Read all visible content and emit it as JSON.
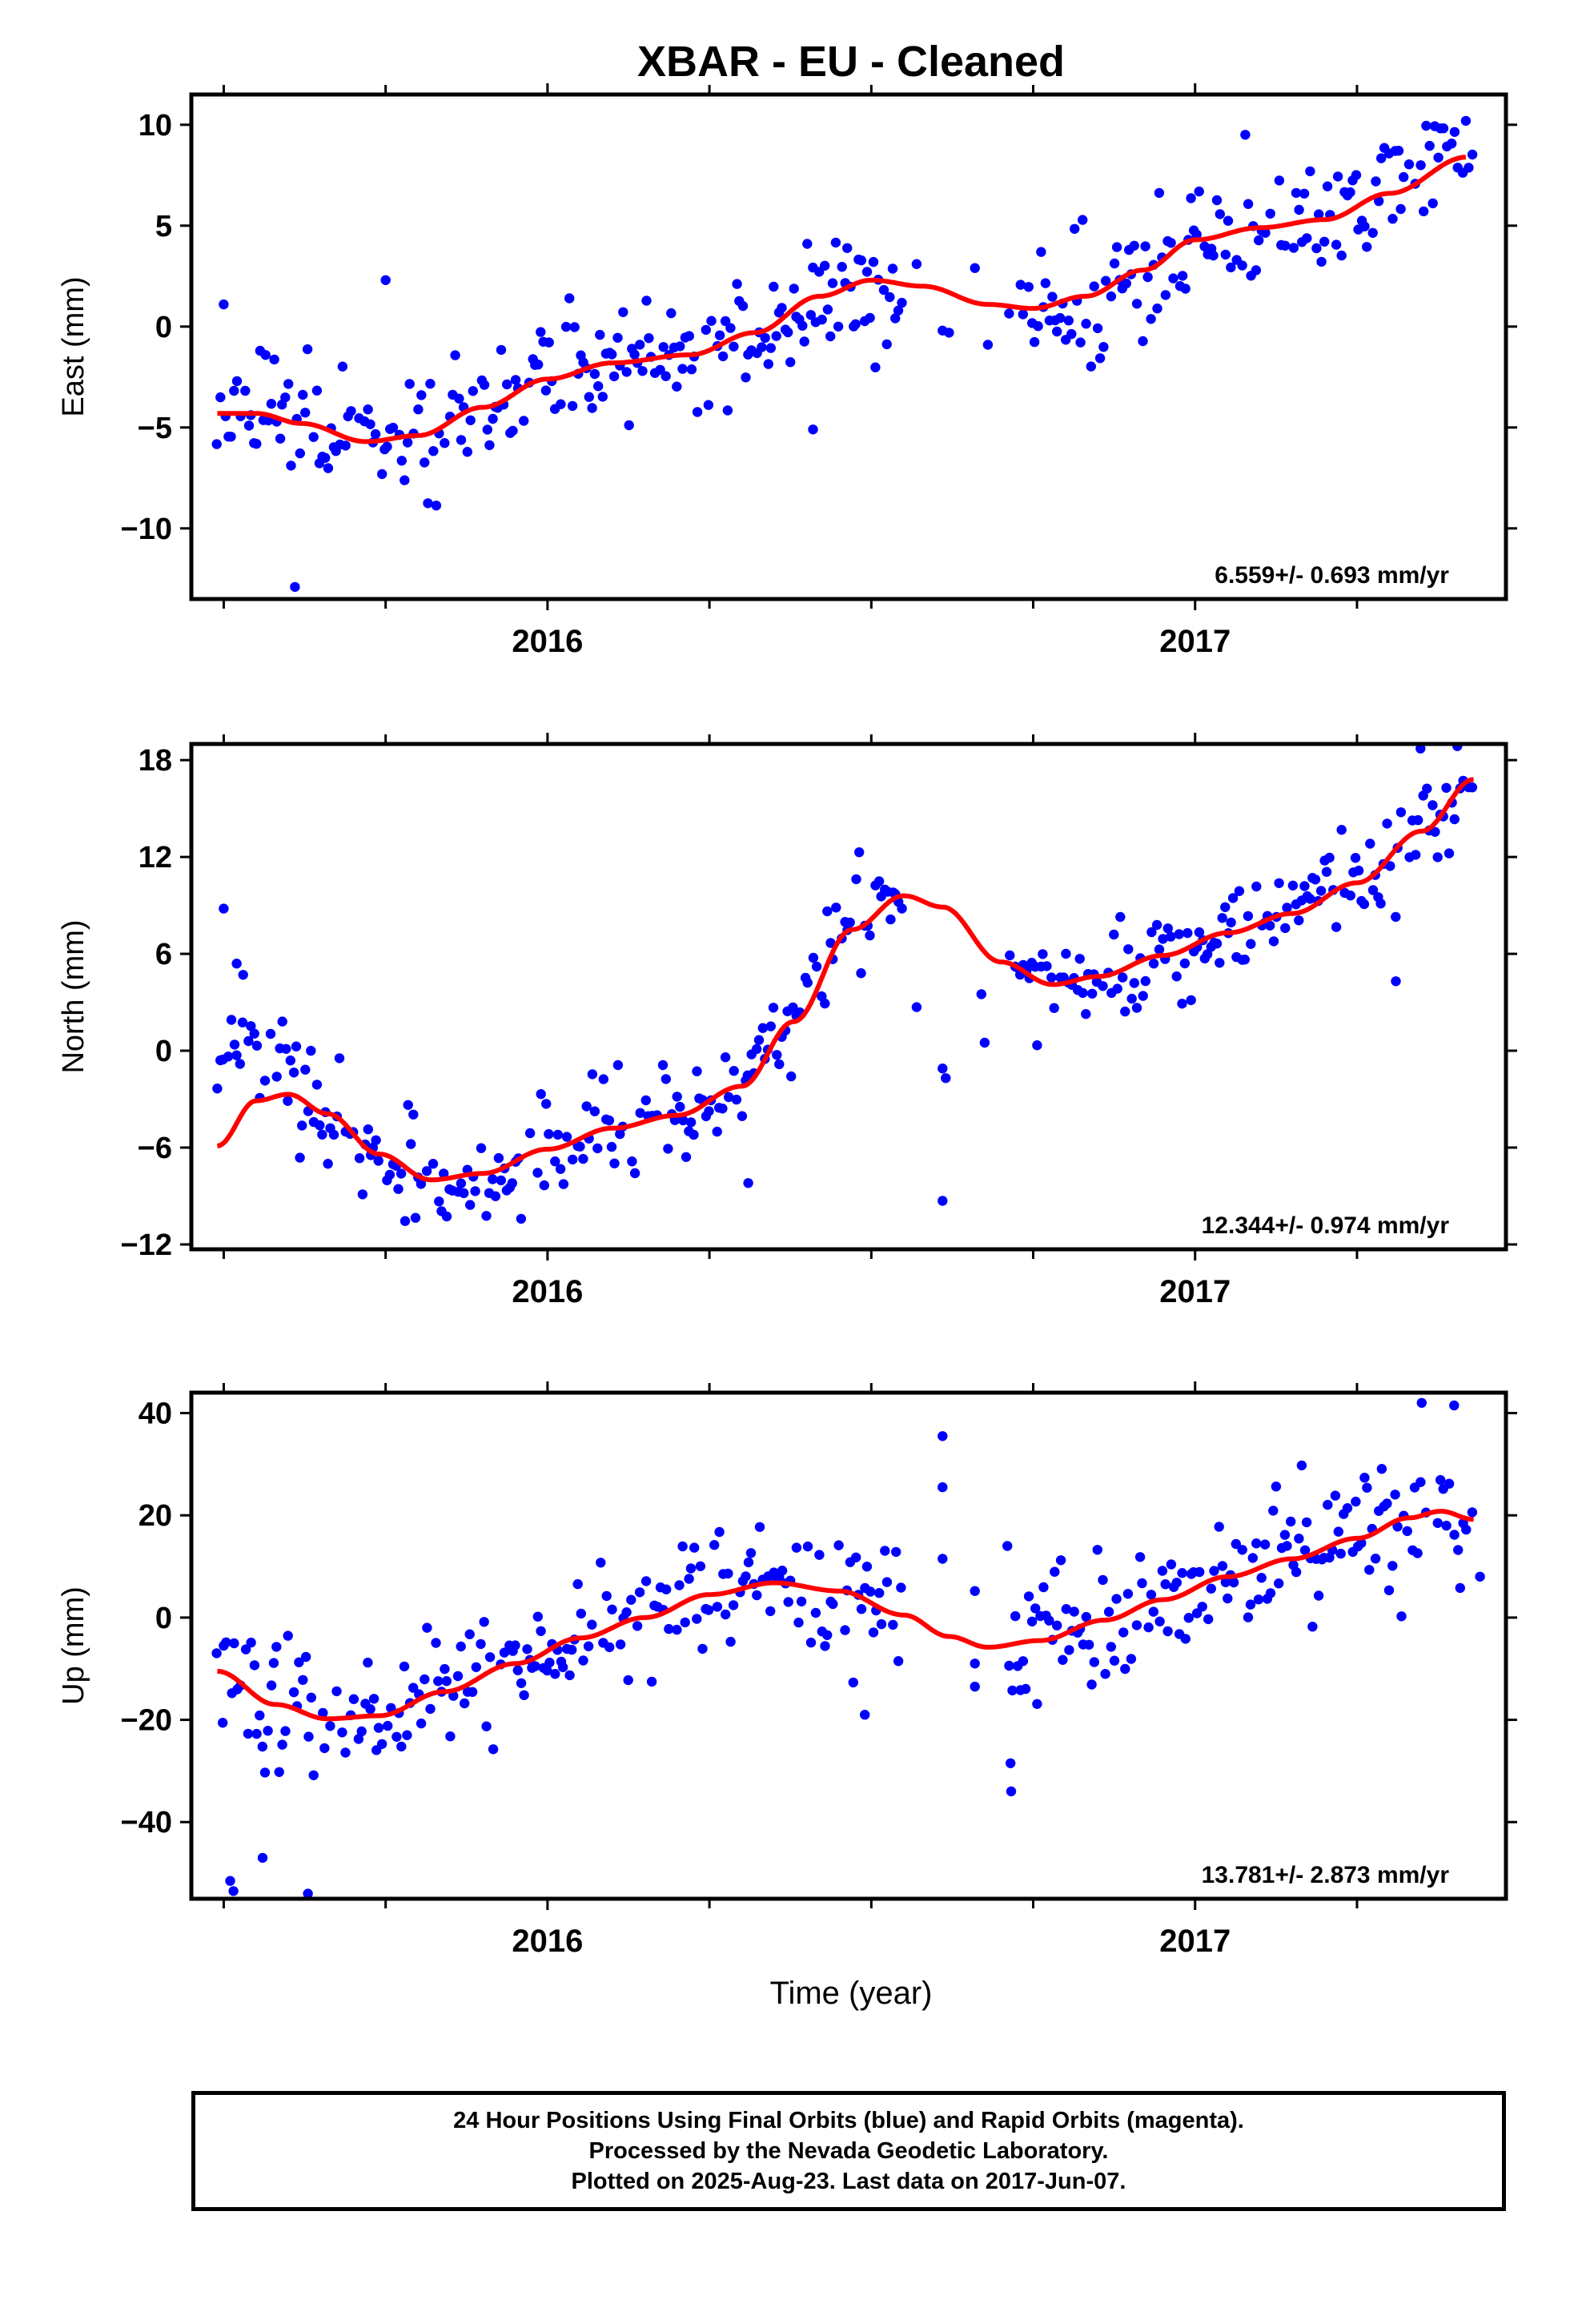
{
  "title": "XBAR  - EU - Cleaned",
  "x_axis_label": "Time (year)",
  "footer": {
    "line1": "24 Hour Positions Using Final Orbits (blue) and Rapid Orbits (magenta).",
    "line2": "Processed by the Nevada Geodetic Laboratory.",
    "line3": "Plotted on 2025-Aug-23. Last data on 2017-Jun-07."
  },
  "colors": {
    "points": "#0000ff",
    "fit": "#ff0000",
    "axes": "#000000"
  },
  "chart_data": [
    {
      "type": "scatter",
      "ylabel": "East (mm)",
      "rate_label": "6.559+/- 0.693 mm/yr",
      "xlim": [
        2015.45,
        2017.48
      ],
      "ylim": [
        -13.5,
        11.5
      ],
      "yticks": [
        10,
        5,
        0,
        -5,
        -10
      ],
      "xticks_major": [
        2016,
        2017
      ],
      "fit_knots": [
        [
          2015.49,
          -4.3
        ],
        [
          2015.55,
          -4.3
        ],
        [
          2015.62,
          -4.8
        ],
        [
          2015.72,
          -5.7
        ],
        [
          2015.8,
          -5.4
        ],
        [
          2015.9,
          -4.0
        ],
        [
          2016.0,
          -2.6
        ],
        [
          2016.1,
          -1.8
        ],
        [
          2016.22,
          -1.4
        ],
        [
          2016.32,
          -0.3
        ],
        [
          2016.42,
          1.5
        ],
        [
          2016.5,
          2.3
        ],
        [
          2016.58,
          2.0
        ],
        [
          2016.68,
          1.1
        ],
        [
          2016.75,
          0.9
        ],
        [
          2016.83,
          1.5
        ],
        [
          2016.92,
          2.8
        ],
        [
          2017.0,
          4.3
        ],
        [
          2017.1,
          4.9
        ],
        [
          2017.2,
          5.3
        ],
        [
          2017.3,
          6.6
        ],
        [
          2017.42,
          8.4
        ]
      ],
      "trend_start": -5.2,
      "noise": 1.6,
      "seed": 11,
      "gaps": [
        [
          2016.55,
          2016.71
        ]
      ],
      "gap_points": [
        [
          2016.57,
          3.1
        ],
        [
          2016.61,
          -0.2
        ],
        [
          2016.62,
          -0.3
        ],
        [
          2016.66,
          2.9
        ],
        [
          2016.68,
          -0.9
        ]
      ],
      "outliers": [
        [
          2015.61,
          -12.9
        ],
        [
          2015.75,
          2.3
        ],
        [
          2015.5,
          1.1
        ],
        [
          2016.41,
          -5.1
        ]
      ],
      "fit_type": "line"
    },
    {
      "type": "scatter",
      "ylabel": "North (mm)",
      "rate_label": "12.344+/- 0.974 mm/yr",
      "xlim": [
        2015.45,
        2017.48
      ],
      "ylim": [
        -12.3,
        19.0
      ],
      "yticks": [
        18,
        12,
        6,
        0,
        -6,
        -12
      ],
      "xticks_major": [
        2016,
        2017
      ],
      "fit_knots": [
        [
          2015.49,
          -5.9
        ],
        [
          2015.55,
          -3.1
        ],
        [
          2015.6,
          -2.7
        ],
        [
          2015.66,
          -3.9
        ],
        [
          2015.74,
          -6.4
        ],
        [
          2015.82,
          -8.0
        ],
        [
          2015.9,
          -7.6
        ],
        [
          2016.0,
          -6.1
        ],
        [
          2016.1,
          -4.8
        ],
        [
          2016.2,
          -4.0
        ],
        [
          2016.3,
          -2.2
        ],
        [
          2016.38,
          1.8
        ],
        [
          2016.47,
          7.5
        ],
        [
          2016.55,
          9.6
        ],
        [
          2016.61,
          8.9
        ],
        [
          2016.7,
          5.5
        ],
        [
          2016.78,
          4.1
        ],
        [
          2016.85,
          4.6
        ],
        [
          2016.95,
          5.9
        ],
        [
          2017.05,
          7.3
        ],
        [
          2017.15,
          8.5
        ],
        [
          2017.25,
          10.4
        ],
        [
          2017.35,
          13.6
        ],
        [
          2017.43,
          16.8
        ]
      ],
      "noise": 1.5,
      "seed": 23,
      "gaps": [
        [
          2016.55,
          2016.71
        ]
      ],
      "gap_points": [
        [
          2016.57,
          2.7
        ],
        [
          2016.61,
          -1.1
        ],
        [
          2016.615,
          -1.7
        ],
        [
          2016.61,
          -9.3
        ],
        [
          2016.67,
          3.5
        ],
        [
          2016.675,
          0.5
        ]
      ],
      "outliers": [
        [
          2015.5,
          8.8
        ],
        [
          2015.52,
          5.4
        ],
        [
          2015.53,
          4.7
        ],
        [
          2016.31,
          -8.2
        ],
        [
          2017.31,
          4.3
        ]
      ],
      "early_offset": [
        [
          2015.49,
          2015.62,
          5.5
        ]
      ],
      "fit_type": "line"
    },
    {
      "type": "scatter",
      "ylabel": "Up (mm)",
      "rate_label": "13.781+/- 2.873 mm/yr",
      "xlim": [
        2015.45,
        2017.48
      ],
      "ylim": [
        -55,
        44
      ],
      "yticks": [
        40,
        20,
        0,
        -20,
        -40
      ],
      "xticks_major": [
        2016,
        2017
      ],
      "fit_knots": [
        [
          2015.49,
          -10.5
        ],
        [
          2015.58,
          -17.0
        ],
        [
          2015.66,
          -19.8
        ],
        [
          2015.74,
          -19.2
        ],
        [
          2015.84,
          -14.5
        ],
        [
          2015.95,
          -9.0
        ],
        [
          2016.05,
          -4.0
        ],
        [
          2016.15,
          0.0
        ],
        [
          2016.25,
          4.5
        ],
        [
          2016.35,
          6.8
        ],
        [
          2016.45,
          5.2
        ],
        [
          2016.55,
          0.5
        ],
        [
          2016.62,
          -3.7
        ],
        [
          2016.68,
          -5.8
        ],
        [
          2016.76,
          -4.5
        ],
        [
          2016.86,
          -0.5
        ],
        [
          2016.95,
          3.5
        ],
        [
          2017.05,
          8.0
        ],
        [
          2017.15,
          11.5
        ],
        [
          2017.25,
          15.5
        ],
        [
          2017.33,
          19.5
        ],
        [
          2017.38,
          20.8
        ],
        [
          2017.43,
          19.2
        ]
      ],
      "noise": 6.5,
      "seed": 37,
      "gaps": [
        [
          2016.55,
          2016.71
        ]
      ],
      "gap_points": [
        [
          2016.61,
          35.5
        ],
        [
          2016.61,
          25.5
        ],
        [
          2016.61,
          11.5
        ],
        [
          2016.66,
          5.2
        ],
        [
          2016.66,
          -9.0
        ],
        [
          2016.66,
          -13.5
        ],
        [
          2016.71,
          14.0
        ],
        [
          2016.715,
          -28.5
        ],
        [
          2016.716,
          -34.0
        ]
      ],
      "outliers": [
        [
          2015.5,
          -5.5
        ],
        [
          2015.51,
          -51.5
        ],
        [
          2015.515,
          -53.5
        ],
        [
          2015.63,
          -54.0
        ],
        [
          2015.56,
          -47.0
        ],
        [
          2016.49,
          -19.0
        ],
        [
          2017.35,
          42.0
        ],
        [
          2017.4,
          41.5
        ],
        [
          2017.44,
          8.0
        ]
      ],
      "fit_type": "line"
    }
  ]
}
